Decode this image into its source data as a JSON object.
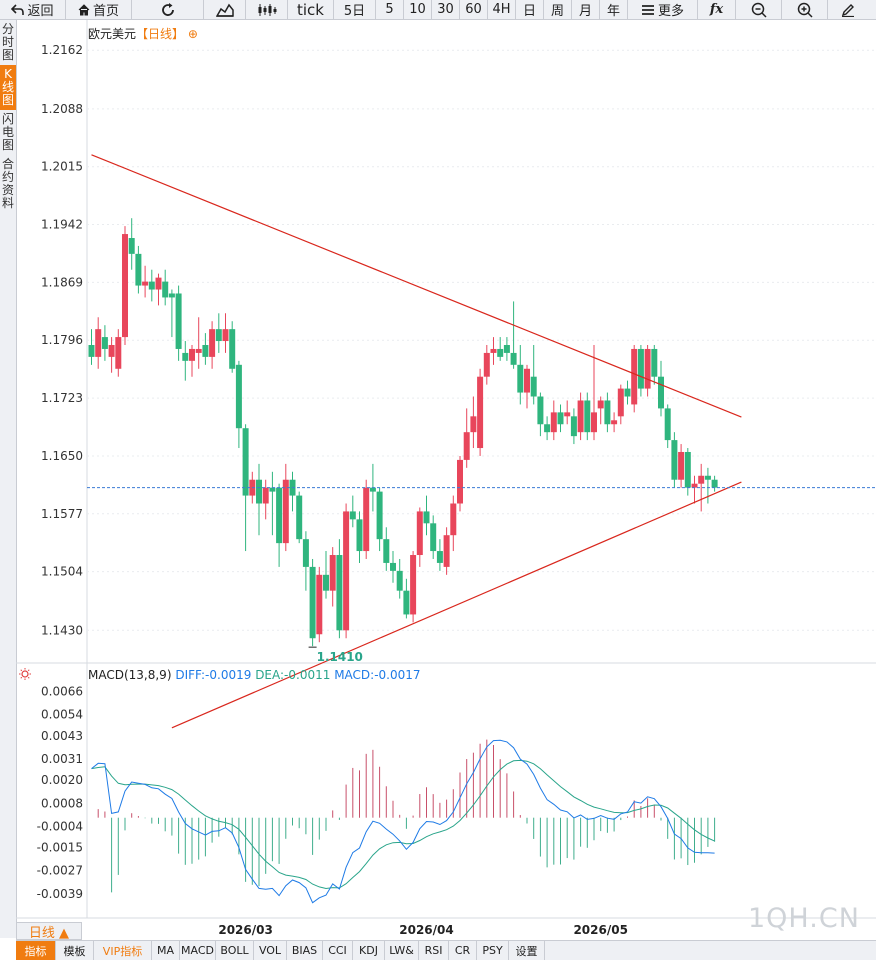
{
  "toolbar": {
    "back": "返回",
    "home": "首页",
    "tick": "tick",
    "periods": [
      "5日",
      "5",
      "10",
      "30",
      "60",
      "4H",
      "日",
      "周",
      "月",
      "年"
    ],
    "more": "更多",
    "fx": "fx"
  },
  "sidetabs": [
    "分时图",
    "K线图",
    "闪电图",
    "合约资料"
  ],
  "chart_data": {
    "type": "candlestick",
    "title": "欧元美元",
    "period_tag": "【日线】",
    "y_ticks": [
      "1.2162",
      "1.2088",
      "1.2015",
      "1.1942",
      "1.1869",
      "1.1796",
      "1.1723",
      "1.1650",
      "1.1577",
      "1.1504",
      "1.1430"
    ],
    "x_ticks": [
      "2026/03",
      "2026/04",
      "2026/05"
    ],
    "last_price": 1.161,
    "low_label": "1.1410",
    "ylim": [
      1.139,
      1.219
    ],
    "candles": [
      {
        "o": 1.179,
        "h": 1.181,
        "l": 1.1765,
        "c": 1.1775
      },
      {
        "o": 1.1775,
        "h": 1.1825,
        "l": 1.176,
        "c": 1.181
      },
      {
        "o": 1.18,
        "h": 1.1815,
        "l": 1.177,
        "c": 1.1785
      },
      {
        "o": 1.1775,
        "h": 1.18,
        "l": 1.1755,
        "c": 1.179
      },
      {
        "o": 1.176,
        "h": 1.181,
        "l": 1.175,
        "c": 1.18
      },
      {
        "o": 1.18,
        "h": 1.194,
        "l": 1.179,
        "c": 1.193
      },
      {
        "o": 1.1925,
        "h": 1.195,
        "l": 1.1885,
        "c": 1.1905
      },
      {
        "o": 1.1905,
        "h": 1.1915,
        "l": 1.1855,
        "c": 1.1865
      },
      {
        "o": 1.1865,
        "h": 1.189,
        "l": 1.185,
        "c": 1.187
      },
      {
        "o": 1.187,
        "h": 1.1885,
        "l": 1.1845,
        "c": 1.186
      },
      {
        "o": 1.186,
        "h": 1.188,
        "l": 1.184,
        "c": 1.1875
      },
      {
        "o": 1.187,
        "h": 1.1885,
        "l": 1.184,
        "c": 1.185
      },
      {
        "o": 1.1855,
        "h": 1.186,
        "l": 1.18,
        "c": 1.185
      },
      {
        "o": 1.1855,
        "h": 1.1865,
        "l": 1.177,
        "c": 1.1785
      },
      {
        "o": 1.178,
        "h": 1.1795,
        "l": 1.1745,
        "c": 1.177
      },
      {
        "o": 1.177,
        "h": 1.179,
        "l": 1.175,
        "c": 1.1785
      },
      {
        "o": 1.178,
        "h": 1.1825,
        "l": 1.176,
        "c": 1.1785
      },
      {
        "o": 1.179,
        "h": 1.1805,
        "l": 1.1765,
        "c": 1.1775
      },
      {
        "o": 1.1775,
        "h": 1.182,
        "l": 1.176,
        "c": 1.181
      },
      {
        "o": 1.181,
        "h": 1.183,
        "l": 1.178,
        "c": 1.1795
      },
      {
        "o": 1.1795,
        "h": 1.183,
        "l": 1.178,
        "c": 1.181
      },
      {
        "o": 1.181,
        "h": 1.182,
        "l": 1.1755,
        "c": 1.176
      },
      {
        "o": 1.1765,
        "h": 1.177,
        "l": 1.166,
        "c": 1.1685
      },
      {
        "o": 1.1685,
        "h": 1.169,
        "l": 1.153,
        "c": 1.16
      },
      {
        "o": 1.16,
        "h": 1.163,
        "l": 1.159,
        "c": 1.162
      },
      {
        "o": 1.162,
        "h": 1.164,
        "l": 1.155,
        "c": 1.159
      },
      {
        "o": 1.159,
        "h": 1.162,
        "l": 1.157,
        "c": 1.161
      },
      {
        "o": 1.161,
        "h": 1.163,
        "l": 1.155,
        "c": 1.1605
      },
      {
        "o": 1.161,
        "h": 1.1615,
        "l": 1.151,
        "c": 1.154
      },
      {
        "o": 1.154,
        "h": 1.164,
        "l": 1.153,
        "c": 1.162
      },
      {
        "o": 1.162,
        "h": 1.163,
        "l": 1.158,
        "c": 1.16
      },
      {
        "o": 1.16,
        "h": 1.1605,
        "l": 1.154,
        "c": 1.1545
      },
      {
        "o": 1.1545,
        "h": 1.1555,
        "l": 1.148,
        "c": 1.151
      },
      {
        "o": 1.151,
        "h": 1.152,
        "l": 1.141,
        "c": 1.142
      },
      {
        "o": 1.1425,
        "h": 1.151,
        "l": 1.1415,
        "c": 1.15
      },
      {
        "o": 1.15,
        "h": 1.153,
        "l": 1.147,
        "c": 1.148
      },
      {
        "o": 1.148,
        "h": 1.1535,
        "l": 1.146,
        "c": 1.1525
      },
      {
        "o": 1.1525,
        "h": 1.1545,
        "l": 1.142,
        "c": 1.143
      },
      {
        "o": 1.143,
        "h": 1.159,
        "l": 1.142,
        "c": 1.158
      },
      {
        "o": 1.158,
        "h": 1.16,
        "l": 1.156,
        "c": 1.157
      },
      {
        "o": 1.157,
        "h": 1.158,
        "l": 1.1515,
        "c": 1.153
      },
      {
        "o": 1.153,
        "h": 1.162,
        "l": 1.152,
        "c": 1.161
      },
      {
        "o": 1.161,
        "h": 1.164,
        "l": 1.158,
        "c": 1.1605
      },
      {
        "o": 1.1605,
        "h": 1.161,
        "l": 1.153,
        "c": 1.1545
      },
      {
        "o": 1.1545,
        "h": 1.156,
        "l": 1.1505,
        "c": 1.1515
      },
      {
        "o": 1.1515,
        "h": 1.153,
        "l": 1.149,
        "c": 1.1505
      },
      {
        "o": 1.1505,
        "h": 1.152,
        "l": 1.147,
        "c": 1.148
      },
      {
        "o": 1.148,
        "h": 1.1495,
        "l": 1.1445,
        "c": 1.145
      },
      {
        "o": 1.145,
        "h": 1.153,
        "l": 1.144,
        "c": 1.1525
      },
      {
        "o": 1.1525,
        "h": 1.1585,
        "l": 1.151,
        "c": 1.158
      },
      {
        "o": 1.158,
        "h": 1.16,
        "l": 1.155,
        "c": 1.1565
      },
      {
        "o": 1.1565,
        "h": 1.1575,
        "l": 1.152,
        "c": 1.153
      },
      {
        "o": 1.153,
        "h": 1.1545,
        "l": 1.1505,
        "c": 1.1515
      },
      {
        "o": 1.151,
        "h": 1.156,
        "l": 1.15,
        "c": 1.155
      },
      {
        "o": 1.155,
        "h": 1.16,
        "l": 1.153,
        "c": 1.159
      },
      {
        "o": 1.159,
        "h": 1.165,
        "l": 1.158,
        "c": 1.1645
      },
      {
        "o": 1.1645,
        "h": 1.171,
        "l": 1.1635,
        "c": 1.168
      },
      {
        "o": 1.168,
        "h": 1.1725,
        "l": 1.166,
        "c": 1.17
      },
      {
        "o": 1.166,
        "h": 1.176,
        "l": 1.165,
        "c": 1.175
      },
      {
        "o": 1.175,
        "h": 1.179,
        "l": 1.174,
        "c": 1.178
      },
      {
        "o": 1.178,
        "h": 1.18,
        "l": 1.1765,
        "c": 1.1785
      },
      {
        "o": 1.1785,
        "h": 1.18,
        "l": 1.177,
        "c": 1.1775
      },
      {
        "o": 1.179,
        "h": 1.18,
        "l": 1.177,
        "c": 1.178
      },
      {
        "o": 1.178,
        "h": 1.1845,
        "l": 1.176,
        "c": 1.1765
      },
      {
        "o": 1.1765,
        "h": 1.179,
        "l": 1.1715,
        "c": 1.173
      },
      {
        "o": 1.173,
        "h": 1.1765,
        "l": 1.171,
        "c": 1.176
      },
      {
        "o": 1.175,
        "h": 1.179,
        "l": 1.1715,
        "c": 1.1725
      },
      {
        "o": 1.1725,
        "h": 1.173,
        "l": 1.1675,
        "c": 1.169
      },
      {
        "o": 1.169,
        "h": 1.17,
        "l": 1.167,
        "c": 1.168
      },
      {
        "o": 1.168,
        "h": 1.172,
        "l": 1.167,
        "c": 1.1705
      },
      {
        "o": 1.1705,
        "h": 1.1715,
        "l": 1.168,
        "c": 1.169
      },
      {
        "o": 1.17,
        "h": 1.172,
        "l": 1.169,
        "c": 1.1705
      },
      {
        "o": 1.17,
        "h": 1.171,
        "l": 1.1665,
        "c": 1.1675
      },
      {
        "o": 1.168,
        "h": 1.173,
        "l": 1.167,
        "c": 1.172
      },
      {
        "o": 1.172,
        "h": 1.173,
        "l": 1.167,
        "c": 1.168
      },
      {
        "o": 1.168,
        "h": 1.179,
        "l": 1.167,
        "c": 1.1705
      },
      {
        "o": 1.171,
        "h": 1.1725,
        "l": 1.169,
        "c": 1.172
      },
      {
        "o": 1.172,
        "h": 1.173,
        "l": 1.168,
        "c": 1.169
      },
      {
        "o": 1.169,
        "h": 1.1705,
        "l": 1.168,
        "c": 1.1695
      },
      {
        "o": 1.17,
        "h": 1.174,
        "l": 1.169,
        "c": 1.1735
      },
      {
        "o": 1.1735,
        "h": 1.1745,
        "l": 1.1715,
        "c": 1.1725
      },
      {
        "o": 1.1715,
        "h": 1.179,
        "l": 1.1705,
        "c": 1.1785
      },
      {
        "o": 1.1785,
        "h": 1.179,
        "l": 1.1725,
        "c": 1.1735
      },
      {
        "o": 1.1735,
        "h": 1.179,
        "l": 1.1725,
        "c": 1.1785
      },
      {
        "o": 1.1785,
        "h": 1.179,
        "l": 1.174,
        "c": 1.175
      },
      {
        "o": 1.175,
        "h": 1.177,
        "l": 1.17,
        "c": 1.171
      },
      {
        "o": 1.171,
        "h": 1.1715,
        "l": 1.166,
        "c": 1.167
      },
      {
        "o": 1.167,
        "h": 1.168,
        "l": 1.161,
        "c": 1.162
      },
      {
        "o": 1.162,
        "h": 1.1665,
        "l": 1.161,
        "c": 1.1655
      },
      {
        "o": 1.1655,
        "h": 1.166,
        "l": 1.16,
        "c": 1.161
      },
      {
        "o": 1.161,
        "h": 1.1625,
        "l": 1.159,
        "c": 1.1615
      },
      {
        "o": 1.1615,
        "h": 1.164,
        "l": 1.158,
        "c": 1.1625
      },
      {
        "o": 1.1625,
        "h": 1.1635,
        "l": 1.159,
        "c": 1.162
      },
      {
        "o": 1.162,
        "h": 1.1625,
        "l": 1.1605,
        "c": 1.161
      }
    ],
    "trendlines": [
      {
        "from": [
          0,
          1.203
        ],
        "to": [
          97,
          1.1699
        ]
      },
      {
        "from": [
          12,
          1.1307
        ],
        "to": [
          97,
          1.1617
        ]
      }
    ]
  },
  "macd": {
    "title": "MACD(13,8,9)",
    "diff": "DIFF:-0.0019",
    "dea": "DEA:-0.0011",
    "macd": "MACD:-0.0017",
    "y_ticks": [
      "0.0066",
      "0.0054",
      "0.0043",
      "0.0031",
      "0.0020",
      "0.0008",
      "-0.0004",
      "-0.0015",
      "-0.0027",
      "-0.0039"
    ],
    "ylim": [
      -0.005,
      0.0072
    ]
  },
  "watermark": "1QH.CN",
  "period_tab": "日线 ▲",
  "bottom_tabs": [
    "指标",
    "模板",
    "VIP指标",
    "MA",
    "MACD",
    "BOLL",
    "VOL",
    "BIAS",
    "CCI",
    "KDJ",
    "LW&",
    "RSI",
    "CR",
    "PSY",
    "设置"
  ],
  "colors": {
    "up": "#e8465b",
    "down": "#2fb57e",
    "trend": "#d9271d",
    "diff": "#1f7be6",
    "dea": "#2aa58b"
  }
}
